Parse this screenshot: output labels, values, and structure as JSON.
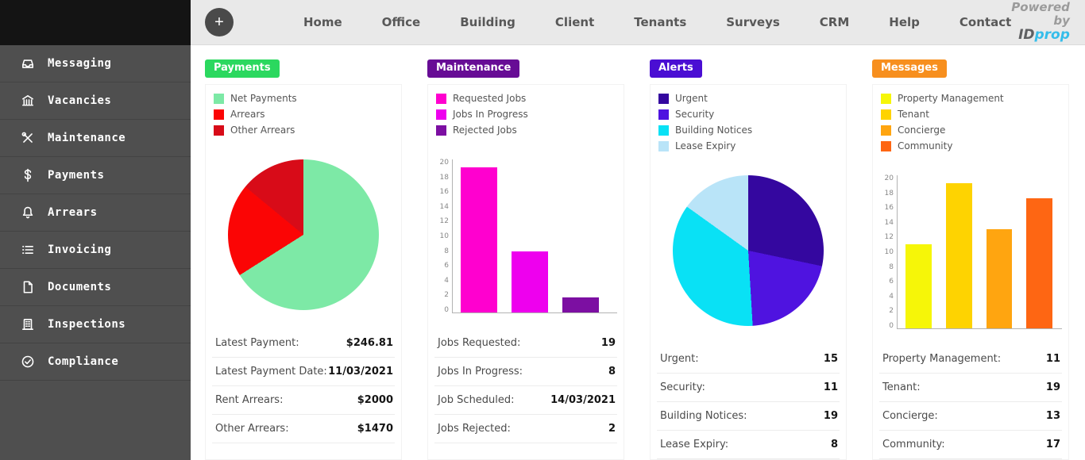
{
  "topnav": {
    "add_button": "+",
    "items": [
      "Home",
      "Office",
      "Building",
      "Client",
      "Tenants",
      "Surveys",
      "CRM",
      "Help",
      "Contact"
    ],
    "logo": {
      "line1": "Powered",
      "line2_prefix": "by ",
      "line2_id": "ID",
      "line2_prop": "prop"
    }
  },
  "sidebar": {
    "items": [
      {
        "label": "Messaging",
        "icon": "inbox-icon"
      },
      {
        "label": "Vacancies",
        "icon": "building-icon"
      },
      {
        "label": "Maintenance",
        "icon": "tools-icon"
      },
      {
        "label": "Payments",
        "icon": "dollar-icon"
      },
      {
        "label": "Arrears",
        "icon": "bell-icon"
      },
      {
        "label": "Invoicing",
        "icon": "list-icon"
      },
      {
        "label": "Documents",
        "icon": "document-icon"
      },
      {
        "label": "Inspections",
        "icon": "inspection-building-icon"
      },
      {
        "label": "Compliance",
        "icon": "check-circle-icon"
      }
    ]
  },
  "panels": [
    {
      "badge": "Payments",
      "badge_color": "#2bd85f",
      "stats": [
        {
          "label": "Latest Payment:",
          "value": "$246.81"
        },
        {
          "label": "Latest Payment Date:",
          "value": "11/03/2021"
        },
        {
          "label": "Rent Arrears:",
          "value": "$2000"
        },
        {
          "label": "Other Arrears:",
          "value": "$1470"
        }
      ]
    },
    {
      "badge": "Maintenance",
      "badge_color": "#670c95",
      "stats": [
        {
          "label": "Jobs Requested:",
          "value": "19"
        },
        {
          "label": "Jobs In Progress:",
          "value": "8"
        },
        {
          "label": "Job Scheduled:",
          "value": "14/03/2021"
        },
        {
          "label": "Jobs Rejected:",
          "value": "2"
        }
      ]
    },
    {
      "badge": "Alerts",
      "badge_color": "#4a0ed3",
      "stats": [
        {
          "label": "Urgent:",
          "value": "15"
        },
        {
          "label": "Security:",
          "value": "11"
        },
        {
          "label": "Building Notices:",
          "value": "19"
        },
        {
          "label": "Lease Expiry:",
          "value": "8"
        }
      ]
    },
    {
      "badge": "Messages",
      "badge_color": "#f78f1e",
      "stats": [
        {
          "label": "Property Management:",
          "value": "11"
        },
        {
          "label": "Tenant:",
          "value": "19"
        },
        {
          "label": "Concierge:",
          "value": "13"
        },
        {
          "label": "Community:",
          "value": "17"
        }
      ]
    }
  ],
  "chart_data": [
    {
      "type": "pie",
      "title": "Payments",
      "labels": [
        "Net Payments",
        "Arrears",
        "Other Arrears"
      ],
      "values": [
        66,
        20,
        14
      ],
      "colors": [
        "#7de9a6",
        "#fb0505",
        "#d80b18"
      ],
      "legend_position": "top-left"
    },
    {
      "type": "bar",
      "title": "Maintenance",
      "labels": [
        "Requested Jobs",
        "Jobs In Progress",
        "Rejected Jobs"
      ],
      "values": [
        19,
        8,
        2
      ],
      "colors": [
        "#ff00cf",
        "#ee00ee",
        "#7c0fa2"
      ],
      "ylim": [
        0,
        20
      ],
      "yticks": [
        0,
        2,
        4,
        6,
        8,
        10,
        12,
        14,
        16,
        18,
        20
      ],
      "legend_position": "top-left"
    },
    {
      "type": "pie",
      "title": "Alerts",
      "labels": [
        "Urgent",
        "Security",
        "Building Notices",
        "Lease Expiry"
      ],
      "values": [
        15,
        11,
        19,
        8
      ],
      "colors": [
        "#34079f",
        "#4f13e0",
        "#09e1f5",
        "#b9e4f8"
      ],
      "legend_position": "top-left"
    },
    {
      "type": "bar",
      "title": "Messages",
      "labels": [
        "Property Management",
        "Tenant",
        "Concierge",
        "Community"
      ],
      "values": [
        11,
        19,
        13,
        17
      ],
      "colors": [
        "#f6f608",
        "#fed301",
        "#ffa510",
        "#fe6613"
      ],
      "ylim": [
        0,
        20
      ],
      "yticks": [
        0,
        2,
        4,
        6,
        8,
        10,
        12,
        14,
        16,
        18,
        20
      ],
      "legend_position": "top-left"
    }
  ]
}
